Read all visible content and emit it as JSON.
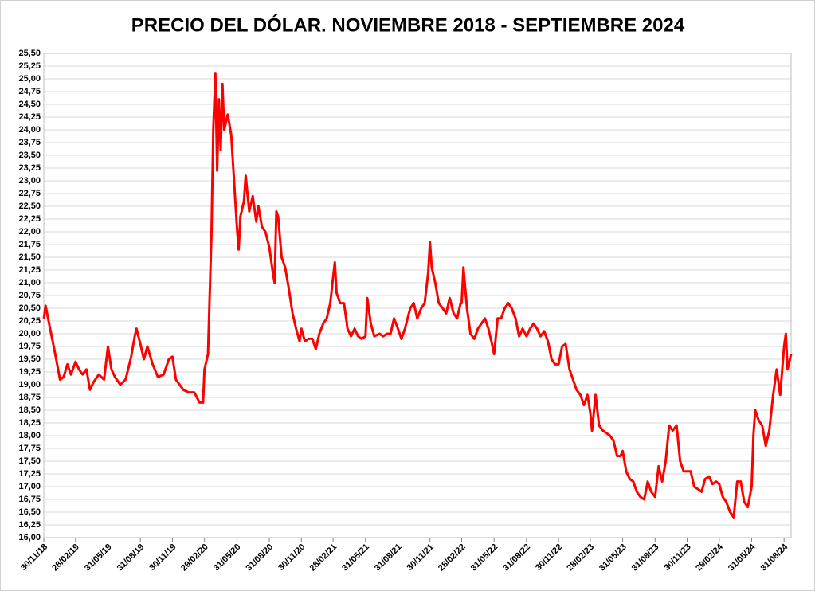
{
  "chart_data": {
    "type": "line",
    "title": "PRECIO DEL DÓLAR. NOVIEMBRE 2018 - SEPTIEMBRE 2024",
    "color": "#ff0000",
    "grid": true,
    "x": [
      "30/11/18",
      "05/12/18",
      "15/12/18",
      "31/12/18",
      "15/01/19",
      "25/01/19",
      "05/02/19",
      "15/02/19",
      "28/02/19",
      "10/03/19",
      "20/03/19",
      "31/03/19",
      "10/04/19",
      "20/04/19",
      "05/05/19",
      "20/05/19",
      "31/05/19",
      "10/06/19",
      "20/06/19",
      "05/07/19",
      "20/07/19",
      "05/08/19",
      "15/08/19",
      "20/08/19",
      "31/08/19",
      "10/09/19",
      "20/09/19",
      "05/10/19",
      "20/10/19",
      "05/11/19",
      "20/11/19",
      "30/11/19",
      "10/12/19",
      "31/12/19",
      "15/01/20",
      "31/01/20",
      "15/02/20",
      "25/02/20",
      "29/02/20",
      "10/03/20",
      "20/03/20",
      "25/03/20",
      "31/03/20",
      "05/04/20",
      "10/04/20",
      "15/04/20",
      "20/04/20",
      "25/04/20",
      "05/05/20",
      "15/05/20",
      "31/05/20",
      "05/06/20",
      "10/06/20",
      "20/06/20",
      "25/06/20",
      "05/07/20",
      "15/07/20",
      "25/07/20",
      "31/07/20",
      "10/08/20",
      "20/08/20",
      "31/08/20",
      "10/09/20",
      "15/09/20",
      "20/09/20",
      "25/09/20",
      "05/10/20",
      "15/10/20",
      "25/10/20",
      "05/11/20",
      "15/11/20",
      "25/11/20",
      "30/11/20",
      "10/12/20",
      "20/12/20",
      "31/12/20",
      "10/01/21",
      "20/01/21",
      "31/01/21",
      "10/02/21",
      "20/02/21",
      "28/02/21",
      "05/03/21",
      "10/03/21",
      "20/03/21",
      "31/03/21",
      "10/04/21",
      "20/04/21",
      "30/04/21",
      "10/05/21",
      "20/05/21",
      "31/05/21",
      "05/06/21",
      "15/06/21",
      "25/06/21",
      "10/07/21",
      "20/07/21",
      "31/07/21",
      "10/08/21",
      "20/08/21",
      "31/08/21",
      "10/09/21",
      "20/09/21",
      "05/10/21",
      "15/10/21",
      "25/10/21",
      "05/11/21",
      "15/11/21",
      "25/11/21",
      "30/11/21",
      "05/12/21",
      "15/12/21",
      "25/12/21",
      "05/01/22",
      "15/01/22",
      "25/01/22",
      "05/02/22",
      "15/02/22",
      "25/02/22",
      "28/02/22",
      "05/03/22",
      "15/03/22",
      "25/03/22",
      "05/04/22",
      "15/04/22",
      "25/04/22",
      "05/05/22",
      "15/05/22",
      "25/05/22",
      "31/05/22",
      "10/06/22",
      "20/06/22",
      "30/06/22",
      "10/07/22",
      "20/07/22",
      "31/07/22",
      "10/08/22",
      "20/08/22",
      "31/08/22",
      "10/09/22",
      "20/09/22",
      "30/09/22",
      "10/10/22",
      "20/10/22",
      "31/10/22",
      "10/11/22",
      "20/11/22",
      "30/11/22",
      "10/12/22",
      "20/12/22",
      "31/12/22",
      "10/01/23",
      "20/01/23",
      "31/01/23",
      "10/02/23",
      "20/02/23",
      "28/02/23",
      "05/03/23",
      "15/03/23",
      "25/03/23",
      "05/04/23",
      "15/04/23",
      "25/04/23",
      "05/05/23",
      "15/05/23",
      "25/05/23",
      "31/05/23",
      "10/06/23",
      "20/06/23",
      "30/06/23",
      "10/07/23",
      "20/07/23",
      "31/07/23",
      "10/08/23",
      "20/08/23",
      "31/08/23",
      "10/09/23",
      "20/09/23",
      "30/09/23",
      "10/10/23",
      "20/10/23",
      "31/10/23",
      "10/11/23",
      "20/11/23",
      "30/11/23",
      "10/12/23",
      "20/12/23",
      "31/12/23",
      "10/01/24",
      "20/01/24",
      "31/01/24",
      "10/02/24",
      "20/02/24",
      "29/02/24",
      "10/03/24",
      "20/03/24",
      "31/03/24",
      "10/04/24",
      "20/04/24",
      "30/04/24",
      "10/05/24",
      "20/05/24",
      "31/05/24",
      "05/06/24",
      "10/06/24",
      "20/06/24",
      "30/06/24",
      "10/07/24",
      "20/07/24",
      "31/07/24",
      "10/08/24",
      "20/08/24",
      "31/08/24",
      "05/09/24",
      "10/09/24",
      "20/09/24"
    ],
    "values": [
      20.3,
      20.55,
      20.2,
      19.65,
      19.1,
      19.15,
      19.4,
      19.2,
      19.45,
      19.3,
      19.2,
      19.3,
      18.9,
      19.05,
      19.2,
      19.1,
      19.75,
      19.3,
      19.15,
      19.0,
      19.1,
      19.55,
      19.95,
      20.1,
      19.8,
      19.5,
      19.75,
      19.4,
      19.15,
      19.2,
      19.5,
      19.55,
      19.1,
      18.9,
      18.85,
      18.85,
      18.65,
      18.65,
      19.3,
      19.6,
      22.0,
      24.0,
      25.1,
      23.2,
      24.6,
      23.6,
      24.9,
      24.0,
      24.3,
      23.9,
      22.1,
      21.65,
      22.3,
      22.6,
      23.1,
      22.4,
      22.7,
      22.2,
      22.5,
      22.1,
      22.0,
      21.7,
      21.2,
      21.0,
      22.4,
      22.3,
      21.5,
      21.3,
      20.9,
      20.4,
      20.1,
      19.85,
      20.1,
      19.85,
      19.9,
      19.9,
      19.7,
      20.0,
      20.2,
      20.3,
      20.6,
      21.1,
      21.4,
      20.8,
      20.6,
      20.6,
      20.1,
      19.95,
      20.1,
      19.95,
      19.9,
      19.95,
      20.7,
      20.2,
      19.95,
      20.0,
      19.95,
      20.0,
      20.0,
      20.3,
      20.1,
      19.9,
      20.1,
      20.5,
      20.6,
      20.3,
      20.5,
      20.6,
      21.2,
      21.8,
      21.3,
      21.0,
      20.6,
      20.5,
      20.4,
      20.7,
      20.4,
      20.3,
      20.6,
      20.6,
      21.3,
      20.5,
      20.0,
      19.9,
      20.1,
      20.2,
      20.3,
      20.1,
      19.8,
      19.6,
      20.3,
      20.3,
      20.5,
      20.6,
      20.5,
      20.3,
      19.95,
      20.1,
      19.95,
      20.1,
      20.2,
      20.1,
      19.95,
      20.05,
      19.85,
      19.5,
      19.4,
      19.4,
      19.75,
      19.8,
      19.3,
      19.1,
      18.9,
      18.8,
      18.6,
      18.8,
      18.45,
      18.1,
      18.8,
      18.2,
      18.1,
      18.05,
      18.0,
      17.9,
      17.6,
      17.6,
      17.7,
      17.3,
      17.15,
      17.1,
      16.9,
      16.8,
      16.75,
      17.1,
      16.9,
      16.8,
      17.4,
      17.1,
      17.5,
      18.2,
      18.1,
      18.2,
      17.5,
      17.3,
      17.3,
      17.3,
      17.0,
      16.95,
      16.9,
      17.15,
      17.2,
      17.05,
      17.1,
      17.05,
      16.8,
      16.7,
      16.5,
      16.4,
      17.1,
      17.1,
      16.7,
      16.6,
      17.0,
      18.0,
      18.5,
      18.3,
      18.2,
      17.8,
      18.1,
      18.8,
      19.3,
      18.8,
      19.75,
      20.0,
      19.3,
      19.6
    ],
    "xlim": [
      "30/11/18",
      "20/09/24"
    ],
    "xticks": [
      "30/11/18",
      "28/02/19",
      "31/05/19",
      "31/08/19",
      "30/11/19",
      "29/02/20",
      "31/05/20",
      "31/08/20",
      "30/11/20",
      "28/02/21",
      "31/05/21",
      "31/08/21",
      "30/11/21",
      "28/02/22",
      "31/05/22",
      "31/08/22",
      "30/11/22",
      "28/02/23",
      "31/05/23",
      "31/08/23",
      "30/11/23",
      "29/02/24",
      "31/05/24",
      "31/08/24"
    ],
    "ylim": [
      16,
      25.5
    ],
    "yticks": [
      {
        "value": 16,
        "label": "16,00"
      },
      {
        "value": 16.25,
        "label": "16,25"
      },
      {
        "value": 16.5,
        "label": "16,50"
      },
      {
        "value": 16.75,
        "label": "16,75"
      },
      {
        "value": 17,
        "label": "17,00"
      },
      {
        "value": 17.25,
        "label": "17,25"
      },
      {
        "value": 17.5,
        "label": "17,50"
      },
      {
        "value": 17.75,
        "label": "17,75"
      },
      {
        "value": 18,
        "label": "18,00"
      },
      {
        "value": 18.25,
        "label": "18,25"
      },
      {
        "value": 18.5,
        "label": "18,50"
      },
      {
        "value": 18.75,
        "label": "18,75"
      },
      {
        "value": 19,
        "label": "19,00"
      },
      {
        "value": 19.25,
        "label": "19,25"
      },
      {
        "value": 19.5,
        "label": "19,50"
      },
      {
        "value": 19.75,
        "label": "19,75"
      },
      {
        "value": 20,
        "label": "20,00"
      },
      {
        "value": 20.25,
        "label": "20,25"
      },
      {
        "value": 20.5,
        "label": "20,50"
      },
      {
        "value": 20.75,
        "label": "20,75"
      },
      {
        "value": 21,
        "label": "21,00"
      },
      {
        "value": 21.25,
        "label": "21,25"
      },
      {
        "value": 21.5,
        "label": "21,50"
      },
      {
        "value": 21.75,
        "label": "21,75"
      },
      {
        "value": 22,
        "label": "22,00"
      },
      {
        "value": 22.25,
        "label": "22,25"
      },
      {
        "value": 22.5,
        "label": "22,50"
      },
      {
        "value": 22.75,
        "label": "22,75"
      },
      {
        "value": 23,
        "label": "23,00"
      },
      {
        "value": 23.25,
        "label": "23,25"
      },
      {
        "value": 23.5,
        "label": "23,50"
      },
      {
        "value": 23.75,
        "label": "23,75"
      },
      {
        "value": 24,
        "label": "24,00"
      },
      {
        "value": 24.25,
        "label": "24,25"
      },
      {
        "value": 24.5,
        "label": "24,50"
      },
      {
        "value": 24.75,
        "label": "24,75"
      },
      {
        "value": 25,
        "label": "25,00"
      },
      {
        "value": 25.25,
        "label": "25,25"
      },
      {
        "value": 25.5,
        "label": "25,50"
      }
    ]
  }
}
